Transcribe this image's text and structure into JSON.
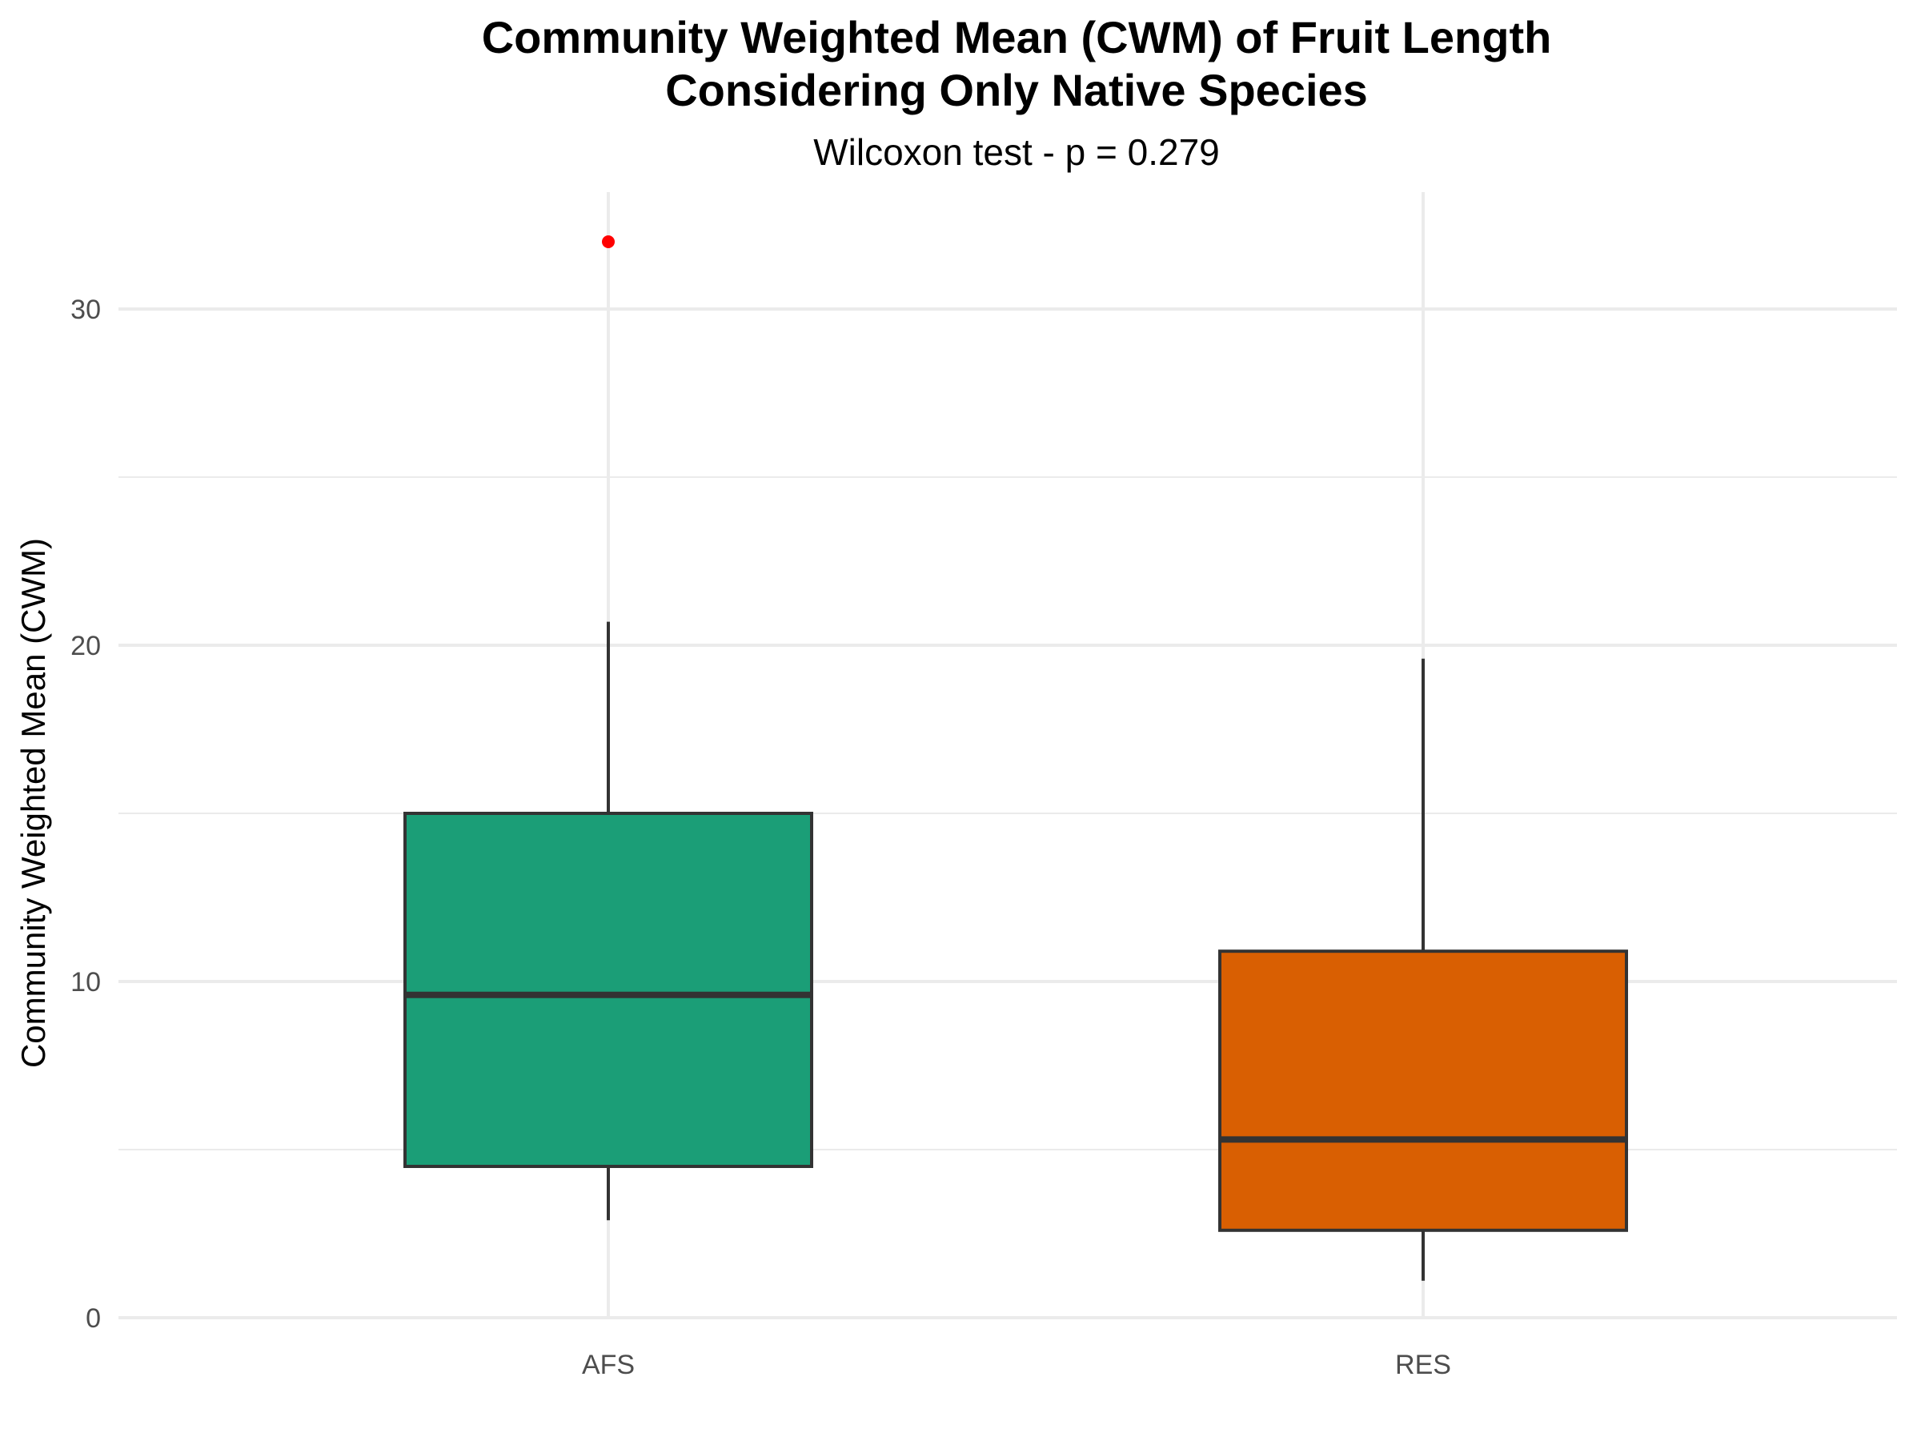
{
  "chart_data": {
    "type": "boxplot",
    "title": "Community Weighted Mean (CWM) of Fruit Length",
    "title_line2": "Considering Only Native Species",
    "subtitle": "Wilcoxon test - p = 0.279",
    "xlabel": "",
    "ylabel": "Community Weighted Mean (CWM)",
    "categories": [
      "AFS",
      "RES"
    ],
    "y_ticks": [
      0,
      10,
      20,
      30
    ],
    "ylim": [
      0,
      33
    ],
    "grid": true,
    "legend": "none",
    "outlier_color": "#ff0000",
    "box_outline_color": "#333333",
    "grid_color": "#ebebeb",
    "boxes": [
      {
        "category": "AFS",
        "fill": "#1b9e77",
        "whisker_low": 2.9,
        "q1": 4.5,
        "median": 9.6,
        "q3": 15.0,
        "whisker_high": 20.7,
        "outliers": [
          32.0
        ]
      },
      {
        "category": "RES",
        "fill": "#d95f02",
        "whisker_low": 1.1,
        "q1": 2.6,
        "median": 5.3,
        "q3": 10.9,
        "whisker_high": 19.6,
        "outliers": []
      }
    ]
  }
}
